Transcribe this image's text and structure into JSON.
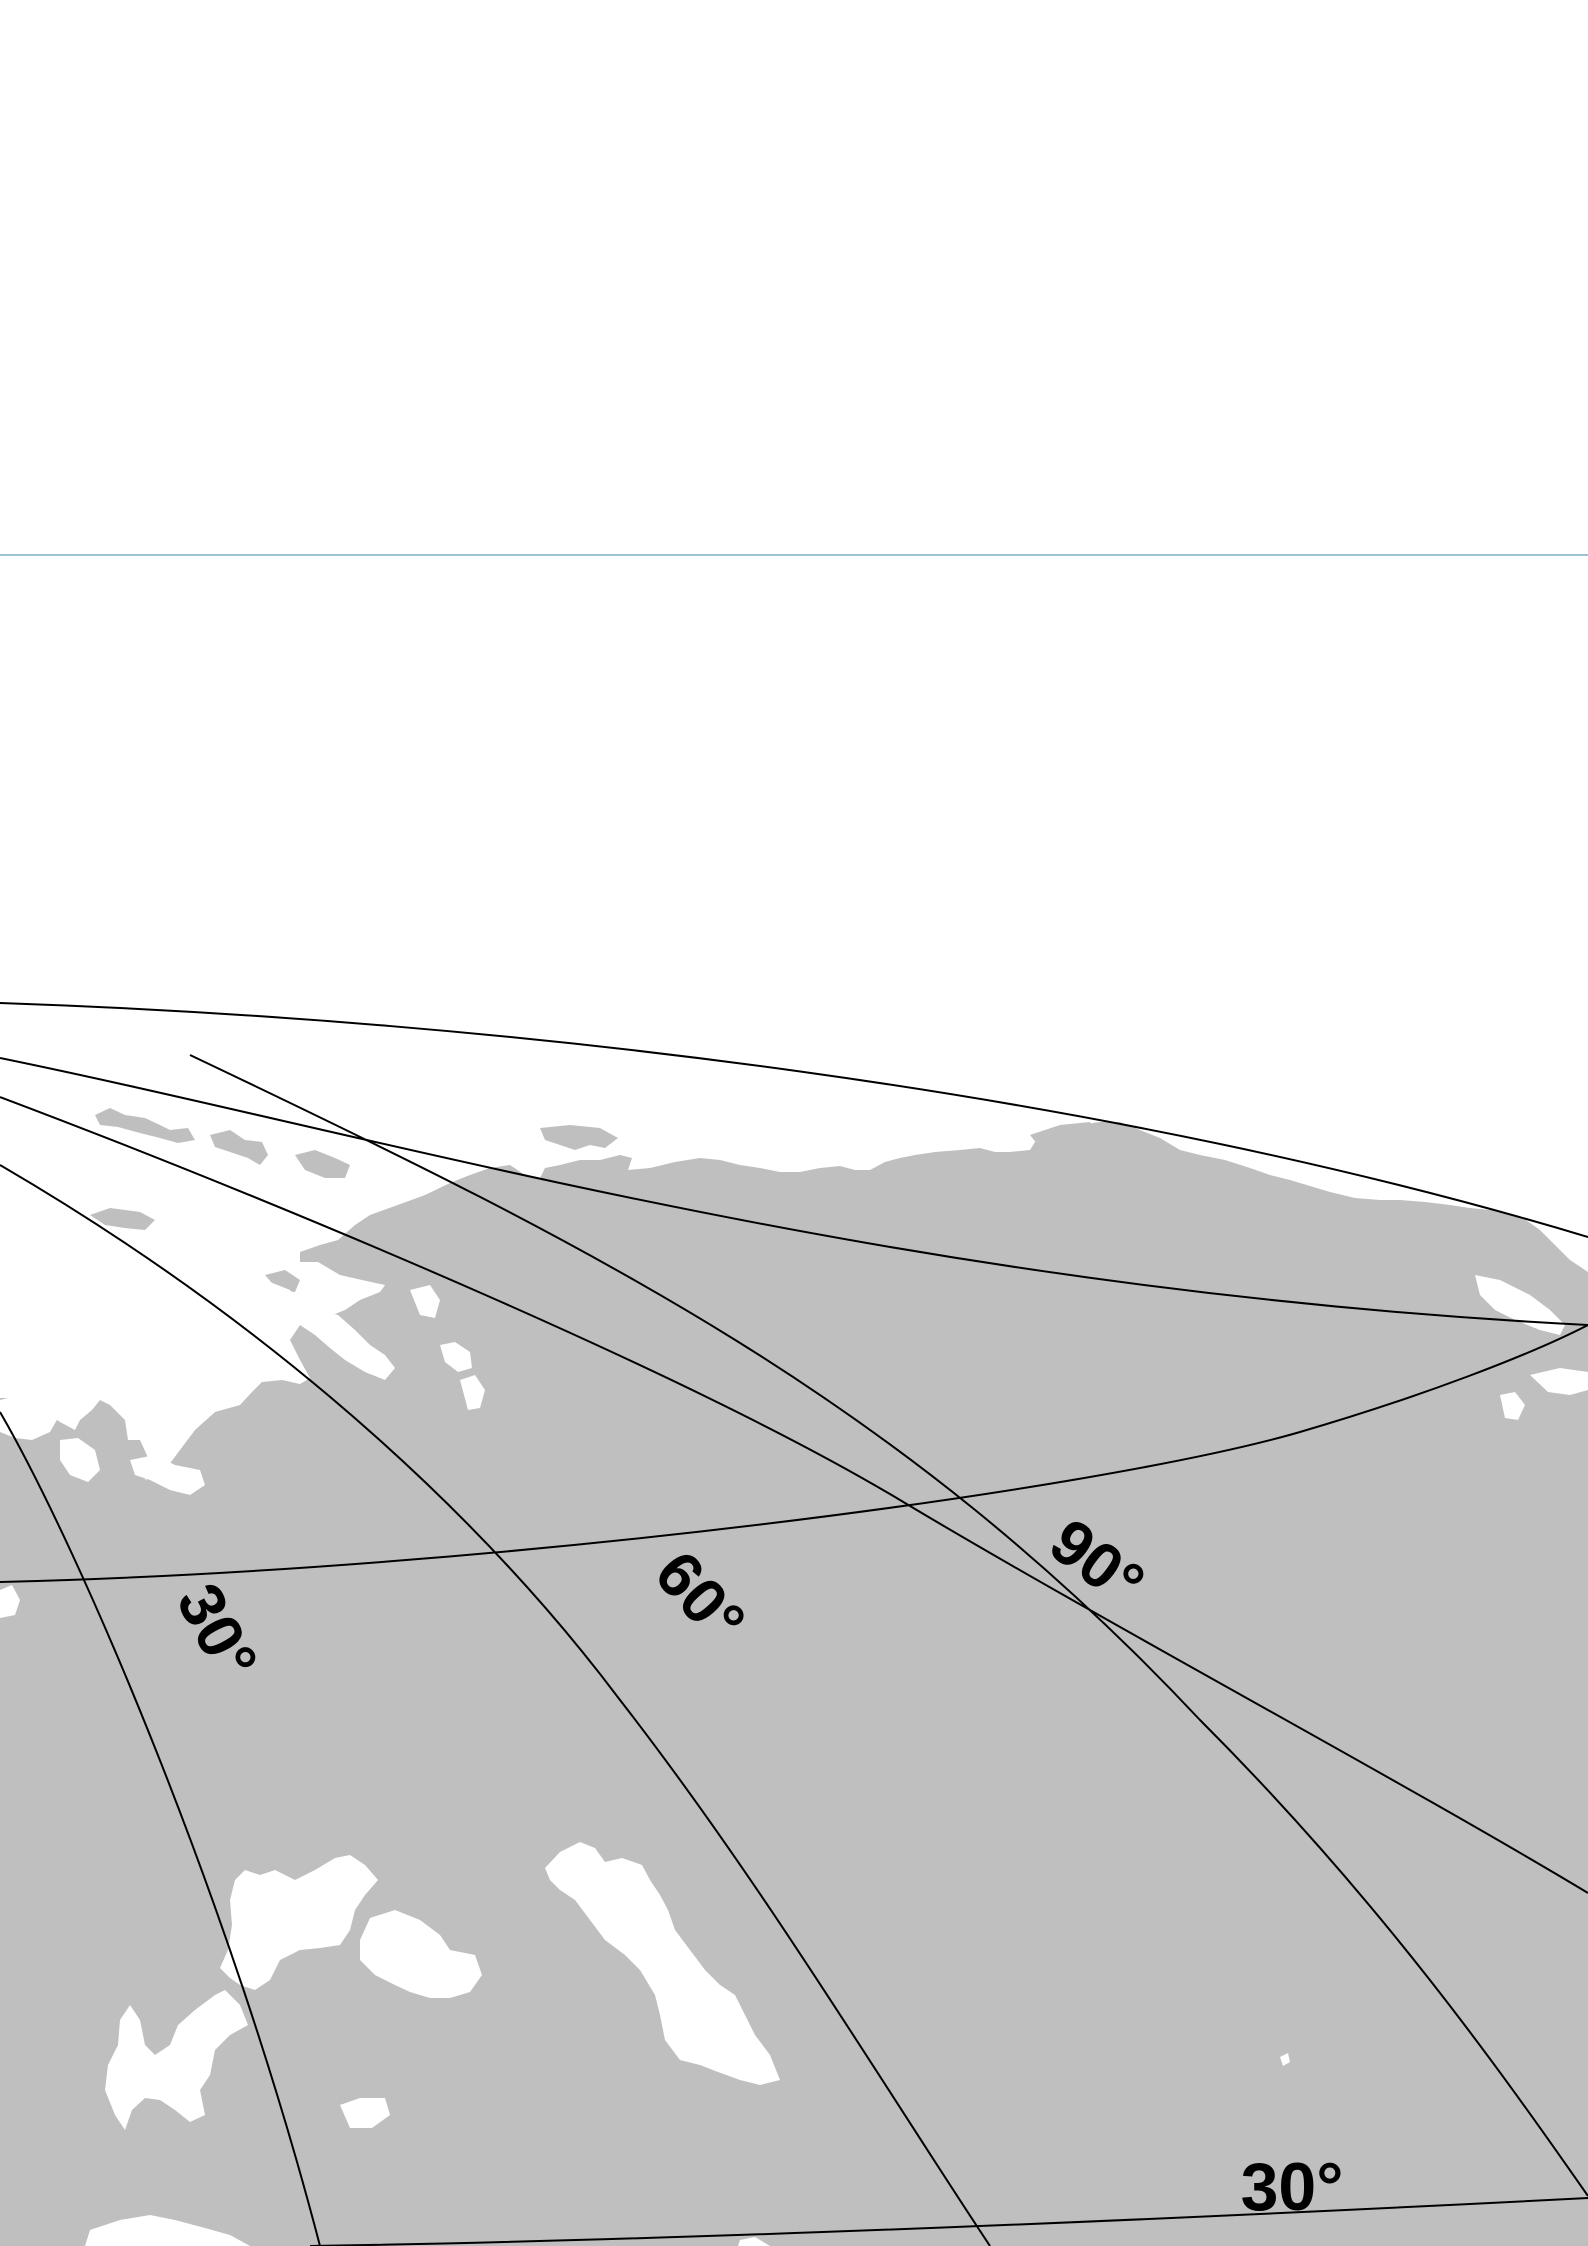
{
  "map": {
    "colors": {
      "background": "#ffffff",
      "land": "#bfbfbf",
      "water": "#ffffff",
      "graticule": "#000000",
      "frame_line": "#9cc3d5"
    },
    "labels": {
      "meridian_30": "30°",
      "meridian_60": "60°",
      "meridian_90": "90°",
      "parallel_30": "30°"
    }
  }
}
